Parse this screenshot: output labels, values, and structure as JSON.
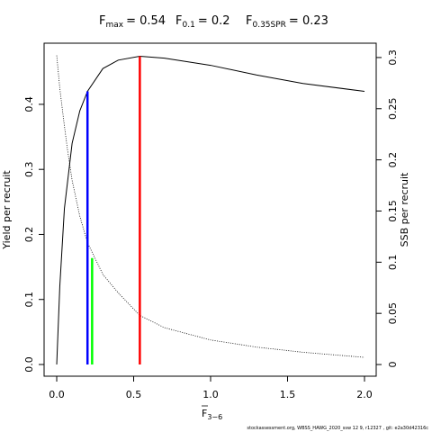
{
  "chart_data": {
    "type": "line",
    "title_items": [
      {
        "symbol": "F",
        "subscript": "max",
        "text": "= 0.54"
      },
      {
        "symbol": "F",
        "subscript": "0.1",
        "text": "= 0.2"
      },
      {
        "symbol": "F",
        "subscript": "0.35SPR",
        "text": "= 0.23"
      }
    ],
    "xlabel": {
      "symbol": "F",
      "subscript": "3−6"
    },
    "ylabel": "Yield per recruit",
    "y2label": "SSB per recruit",
    "footnote": "stockassessment.org, WBSS_HAWG_2020_ssw 12 9, r12327 , git: e2a30d42316c",
    "x": [
      0,
      0.02,
      0.05,
      0.07,
      0.1,
      0.15,
      0.2,
      0.3,
      0.4,
      0.54,
      0.7,
      1.0,
      1.3,
      1.6,
      2.0
    ],
    "series": [
      {
        "name": "Yield per recruit",
        "color": "#000000",
        "dash": "solid",
        "axis": "y",
        "values": [
          0,
          0.12,
          0.24,
          0.28,
          0.34,
          0.39,
          0.42,
          0.455,
          0.468,
          0.474,
          0.471,
          0.46,
          0.445,
          0.432,
          0.42
        ]
      },
      {
        "name": "SSB per recruit",
        "color": "#000000",
        "dash": "dotted",
        "axis": "y2",
        "values": [
          0.302,
          0.27,
          0.233,
          0.21,
          0.18,
          0.145,
          0.119,
          0.088,
          0.07,
          0.048,
          0.036,
          0.024,
          0.017,
          0.012,
          0.007
        ]
      }
    ],
    "reference_lines": [
      {
        "x": 0.54,
        "top": 0.474,
        "axis": "y",
        "color": "#ff0000"
      },
      {
        "x": 0.2,
        "top": 0.42,
        "axis": "y",
        "color": "#0000ff"
      },
      {
        "x": 0.23,
        "top": 0.104,
        "axis": "y2",
        "color": "#00ff00"
      }
    ],
    "xlim": [
      -0.082,
      2.076
    ],
    "ylim": [
      -0.018,
      0.494
    ],
    "y2lim": [
      -0.0114,
      0.314
    ],
    "xticks": [
      {
        "value": 0,
        "label": "0.0"
      },
      0.5,
      {
        "value": 1,
        "label": "1.0"
      },
      1.5,
      {
        "value": 2,
        "label": "2.0"
      }
    ],
    "yticks": [
      {
        "value": 0,
        "label": "0.0"
      },
      0.1,
      0.2,
      0.3,
      0.4
    ],
    "y2ticks": [
      0,
      0.05,
      0.1,
      0.15,
      0.2,
      0.25,
      0.3
    ],
    "grid": false
  }
}
